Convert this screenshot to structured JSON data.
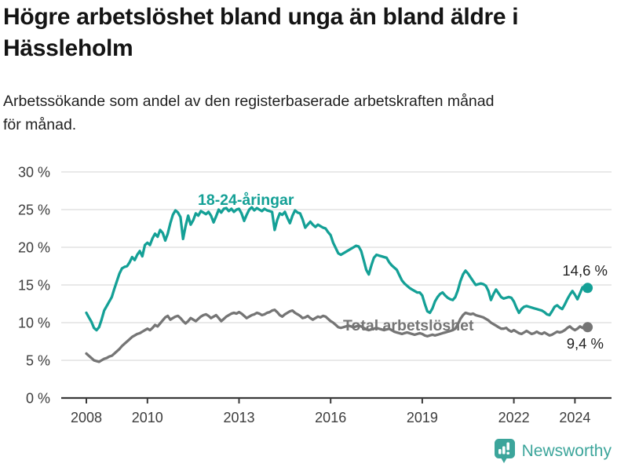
{
  "header": {
    "title_lines": [
      "Högre arbetslöshet bland unga än bland äldre i",
      "Hässleholm"
    ],
    "subtitle_lines": [
      "Arbetssökande som andel av den registerbaserade arbetskraften månad",
      "för månad."
    ]
  },
  "chart_data": {
    "type": "line",
    "title": "Högre arbetslöshet bland unga än bland äldre i Hässleholm",
    "subtitle": "Arbetssökande som andel av den registerbaserade arbetskraften månad för månad.",
    "x_start": {
      "year": 2008,
      "month": 1
    },
    "x_end": {
      "year": 2024,
      "month": 6
    },
    "frequency": "monthly",
    "grid": "horizontal",
    "ylim": [
      0,
      31
    ],
    "yticks": [
      0,
      5,
      10,
      15,
      20,
      25,
      30
    ],
    "ytick_labels": [
      "0 %",
      "5 %",
      "10 %",
      "15 %",
      "20 %",
      "25 %",
      "30 %"
    ],
    "xticks": [
      2008,
      2010,
      2013,
      2016,
      2019,
      2022,
      2024
    ],
    "xtick_labels": [
      "2008",
      "2010",
      "2013",
      "2016",
      "2019",
      "2022",
      "2024"
    ],
    "legend_position": "inline-labels",
    "series": [
      {
        "name": "18-24-åringar",
        "color": "#14a096",
        "end_label": "14,6 %",
        "end_value": 14.6,
        "values": [
          11.3,
          10.7,
          10.1,
          9.3,
          9.0,
          9.4,
          10.4,
          11.6,
          12.2,
          12.8,
          13.4,
          14.5,
          15.5,
          16.5,
          17.2,
          17.4,
          17.5,
          18.0,
          18.7,
          18.3,
          19.0,
          19.5,
          18.8,
          20.3,
          20.6,
          20.3,
          21.2,
          21.8,
          21.4,
          22.3,
          21.9,
          20.9,
          21.8,
          23.2,
          24.3,
          24.9,
          24.6,
          24.0,
          21.1,
          22.8,
          24.2,
          23.0,
          23.6,
          24.5,
          24.2,
          24.8,
          24.6,
          24.4,
          24.7,
          24.2,
          23.3,
          24.1,
          25.0,
          24.6,
          25.1,
          25.2,
          24.8,
          25.1,
          24.7,
          25.0,
          25.1,
          24.5,
          23.5,
          24.3,
          25.0,
          25.3,
          24.9,
          25.2,
          25.0,
          24.8,
          25.1,
          24.9,
          24.8,
          24.7,
          22.3,
          23.6,
          24.5,
          24.3,
          24.7,
          23.9,
          23.2,
          24.2,
          24.9,
          24.6,
          24.5,
          23.7,
          22.6,
          23.0,
          23.4,
          23.0,
          22.7,
          23.0,
          22.8,
          22.6,
          22.5,
          22.0,
          21.6,
          20.6,
          19.9,
          19.2,
          19.0,
          19.2,
          19.4,
          19.6,
          19.8,
          20.0,
          20.2,
          20.1,
          19.5,
          18.3,
          17.0,
          16.4,
          17.6,
          18.6,
          19.0,
          18.9,
          18.8,
          18.7,
          18.6,
          18.0,
          17.6,
          17.3,
          17.0,
          16.3,
          15.6,
          15.2,
          14.9,
          14.6,
          14.4,
          14.2,
          14.0,
          14.0,
          13.6,
          12.5,
          11.5,
          11.3,
          11.9,
          12.8,
          13.4,
          13.8,
          14.0,
          13.6,
          13.3,
          13.1,
          13.0,
          13.4,
          14.3,
          15.5,
          16.4,
          16.9,
          16.5,
          16.0,
          15.5,
          15.0,
          15.1,
          15.2,
          15.1,
          14.9,
          14.2,
          13.0,
          13.8,
          14.4,
          13.9,
          13.4,
          13.2,
          13.3,
          13.4,
          13.3,
          12.8,
          12.0,
          11.3,
          11.8,
          12.1,
          12.2,
          12.1,
          12.0,
          11.9,
          11.8,
          11.7,
          11.6,
          11.4,
          11.1,
          11.0,
          11.5,
          12.1,
          12.3,
          12.0,
          11.8,
          12.4,
          13.1,
          13.7,
          14.2,
          13.7,
          13.1,
          13.9,
          14.7,
          14.2,
          14.6
        ]
      },
      {
        "name": "Total arbetslöshet",
        "color": "#757575",
        "end_label": "9,4 %",
        "end_value": 9.4,
        "values": [
          5.9,
          5.6,
          5.3,
          5.0,
          4.9,
          4.8,
          5.0,
          5.2,
          5.3,
          5.5,
          5.6,
          5.9,
          6.2,
          6.5,
          6.9,
          7.2,
          7.5,
          7.8,
          8.1,
          8.3,
          8.5,
          8.6,
          8.8,
          9.0,
          9.2,
          9.0,
          9.3,
          9.7,
          9.5,
          9.9,
          10.3,
          10.7,
          10.9,
          10.4,
          10.6,
          10.8,
          10.9,
          10.6,
          10.2,
          9.9,
          10.2,
          10.6,
          10.4,
          10.2,
          10.5,
          10.8,
          11.0,
          11.1,
          10.9,
          10.6,
          10.8,
          11.0,
          10.6,
          10.2,
          10.5,
          10.8,
          11.0,
          11.2,
          11.3,
          11.2,
          11.4,
          11.2,
          10.9,
          10.6,
          10.8,
          11.0,
          11.1,
          11.3,
          11.2,
          11.0,
          11.1,
          11.3,
          11.4,
          11.6,
          11.7,
          11.4,
          11.0,
          10.8,
          11.1,
          11.3,
          11.5,
          11.6,
          11.3,
          11.1,
          10.9,
          10.6,
          10.7,
          10.9,
          10.6,
          10.4,
          10.6,
          10.8,
          10.7,
          10.9,
          10.8,
          10.5,
          10.2,
          10.0,
          9.7,
          9.4,
          9.3,
          9.4,
          9.5,
          9.6,
          9.5,
          9.4,
          9.5,
          9.6,
          9.5,
          9.3,
          9.1,
          9.0,
          9.1,
          9.2,
          9.3,
          9.2,
          9.1,
          9.0,
          9.1,
          9.2,
          9.0,
          8.8,
          8.7,
          8.6,
          8.5,
          8.6,
          8.7,
          8.6,
          8.5,
          8.4,
          8.5,
          8.6,
          8.5,
          8.3,
          8.2,
          8.3,
          8.4,
          8.3,
          8.4,
          8.5,
          8.6,
          8.7,
          8.8,
          8.9,
          9.0,
          9.2,
          9.8,
          10.5,
          11.0,
          11.3,
          11.2,
          11.1,
          11.2,
          11.0,
          10.9,
          10.8,
          10.7,
          10.5,
          10.3,
          10.0,
          9.8,
          9.6,
          9.4,
          9.2,
          9.2,
          9.3,
          9.0,
          8.8,
          9.0,
          8.8,
          8.6,
          8.5,
          8.7,
          8.9,
          8.7,
          8.5,
          8.6,
          8.8,
          8.6,
          8.5,
          8.7,
          8.5,
          8.3,
          8.4,
          8.6,
          8.8,
          8.7,
          8.8,
          9.0,
          9.3,
          9.5,
          9.2,
          9.0,
          9.2,
          9.5,
          9.3,
          9.2,
          9.4
        ]
      }
    ]
  },
  "footer": {
    "brand": "Newsworthy"
  },
  "colors": {
    "accent_teal": "#14a096",
    "neutral_gray": "#757575",
    "brand_teal": "#3ca59b",
    "gridline": "#dcdcdc",
    "axis": "#3a3a3a",
    "text_dark": "#141414"
  }
}
